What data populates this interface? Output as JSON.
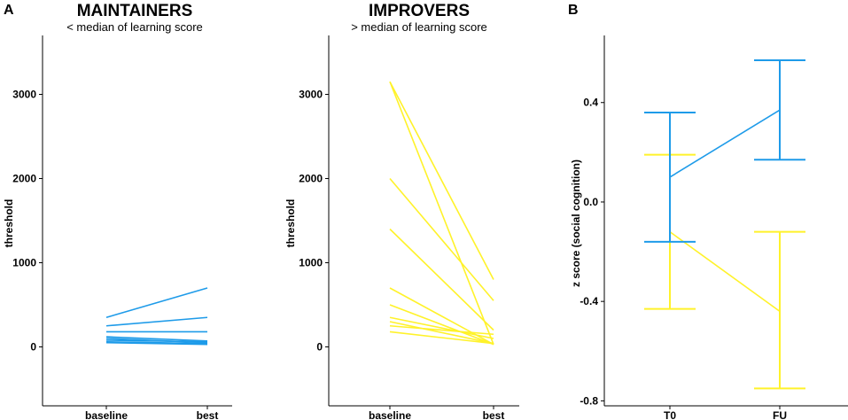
{
  "panel_labels": {
    "a": "A",
    "b": "B"
  },
  "colors": {
    "maintainers": "#1E9BE9",
    "improvers": "#FFF22A"
  },
  "chart_data": [
    {
      "type": "line",
      "panel": "A",
      "title": "MAINTAINERS",
      "subtitle": "< median of learning score",
      "xlabel": "",
      "ylabel": "threshold",
      "categories": [
        "baseline",
        "best"
      ],
      "ylim": [
        -700,
        3700
      ],
      "yticks": [
        0,
        1000,
        2000,
        3000
      ],
      "series": [
        {
          "values": [
            350,
            700
          ]
        },
        {
          "values": [
            250,
            350
          ]
        },
        {
          "values": [
            180,
            180
          ]
        },
        {
          "values": [
            120,
            70
          ]
        },
        {
          "values": [
            100,
            50
          ]
        },
        {
          "values": [
            80,
            60
          ]
        },
        {
          "values": [
            60,
            40
          ]
        },
        {
          "values": [
            50,
            30
          ]
        }
      ]
    },
    {
      "type": "line",
      "panel": "A",
      "title": "IMPROVERS",
      "subtitle": "> median of learning score",
      "xlabel": "",
      "ylabel": "threshold",
      "categories": [
        "baseline",
        "best"
      ],
      "ylim": [
        -700,
        3700
      ],
      "yticks": [
        0,
        1000,
        2000,
        3000
      ],
      "series": [
        {
          "values": [
            3150,
            30
          ]
        },
        {
          "values": [
            3150,
            800
          ]
        },
        {
          "values": [
            2000,
            550
          ]
        },
        {
          "values": [
            1400,
            200
          ]
        },
        {
          "values": [
            700,
            30
          ]
        },
        {
          "values": [
            500,
            30
          ]
        },
        {
          "values": [
            350,
            100
          ]
        },
        {
          "values": [
            300,
            40
          ]
        },
        {
          "values": [
            250,
            150
          ]
        },
        {
          "values": [
            180,
            40
          ]
        }
      ]
    },
    {
      "type": "line",
      "panel": "B",
      "title": "",
      "xlabel": "",
      "ylabel": "z score (social cognition)",
      "categories": [
        "T0",
        "FU"
      ],
      "ylim": [
        -0.82,
        0.67
      ],
      "yticks": [
        -0.8,
        -0.4,
        0.0,
        0.4
      ],
      "ytick_labels": [
        "-0.8",
        "-0.4",
        "0.0",
        "0.4"
      ],
      "series": [
        {
          "name": "improvers",
          "values": [
            -0.12,
            -0.44
          ],
          "lower": [
            -0.43,
            -0.75
          ],
          "upper": [
            0.19,
            -0.12
          ]
        },
        {
          "name": "maintainers",
          "values": [
            0.1,
            0.37
          ],
          "lower": [
            -0.16,
            0.17
          ],
          "upper": [
            0.36,
            0.57
          ]
        }
      ]
    }
  ]
}
